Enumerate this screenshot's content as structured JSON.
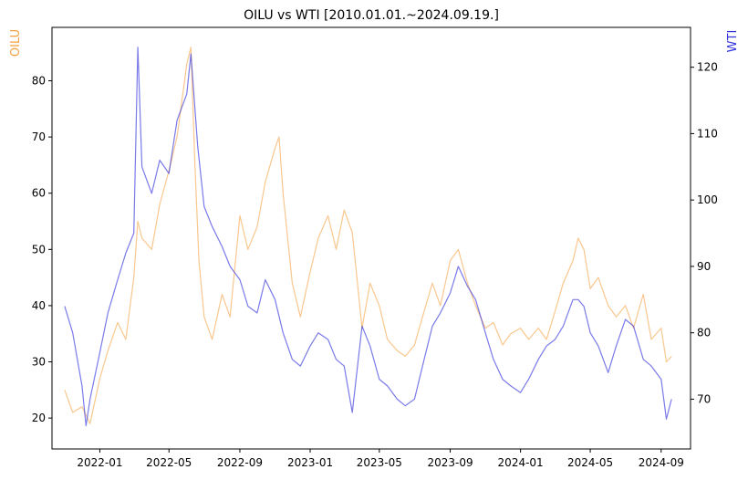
{
  "chart_data": {
    "type": "line",
    "title": "OILU vs WTI [2010.01.01.~2024.09.19.]",
    "ylabel_left": "OILU",
    "ylabel_right": "WTI",
    "x_ticks": [
      "2022-01",
      "2022-05",
      "2022-09",
      "2023-01",
      "2023-05",
      "2023-09",
      "2024-01",
      "2024-05",
      "2024-09"
    ],
    "y_left_ticks": [
      20,
      30,
      40,
      50,
      60,
      70,
      80
    ],
    "y_right_ticks": [
      70,
      80,
      90,
      100,
      110,
      120
    ],
    "ylim_left": [
      14.5,
      89.5
    ],
    "ylim_right": [
      62.5,
      126
    ],
    "xlim": [
      "2021-10-10",
      "2024-10-22"
    ],
    "grid": false,
    "series": [
      {
        "name": "OILU",
        "axis": "left",
        "color": "#f5a142",
        "x": [
          "2021-11-01",
          "2021-11-15",
          "2021-12-01",
          "2021-12-15",
          "2022-01-01",
          "2022-01-15",
          "2022-02-01",
          "2022-02-15",
          "2022-03-01",
          "2022-03-08",
          "2022-03-15",
          "2022-04-01",
          "2022-04-15",
          "2022-05-01",
          "2022-05-15",
          "2022-06-01",
          "2022-06-08",
          "2022-06-15",
          "2022-06-22",
          "2022-07-01",
          "2022-07-15",
          "2022-08-01",
          "2022-08-15",
          "2022-09-01",
          "2022-09-15",
          "2022-10-01",
          "2022-10-15",
          "2022-11-01",
          "2022-11-08",
          "2022-11-15",
          "2022-12-01",
          "2022-12-15",
          "2023-01-01",
          "2023-01-15",
          "2023-02-01",
          "2023-02-15",
          "2023-03-01",
          "2023-03-15",
          "2023-04-01",
          "2023-04-15",
          "2023-05-01",
          "2023-05-15",
          "2023-06-01",
          "2023-06-15",
          "2023-07-01",
          "2023-07-15",
          "2023-08-01",
          "2023-08-15",
          "2023-09-01",
          "2023-09-15",
          "2023-10-01",
          "2023-10-15",
          "2023-11-01",
          "2023-11-15",
          "2023-12-01",
          "2023-12-15",
          "2024-01-01",
          "2024-01-15",
          "2024-02-01",
          "2024-02-15",
          "2024-03-01",
          "2024-03-15",
          "2024-04-01",
          "2024-04-10",
          "2024-04-20",
          "2024-05-01",
          "2024-05-15",
          "2024-06-01",
          "2024-06-15",
          "2024-07-01",
          "2024-07-15",
          "2024-08-01",
          "2024-08-15",
          "2024-09-01",
          "2024-09-10",
          "2024-09-19"
        ],
        "values": [
          25,
          21,
          22,
          19,
          27,
          32,
          37,
          34,
          45,
          55,
          52,
          50,
          58,
          64,
          70,
          83,
          86,
          65,
          48,
          38,
          34,
          42,
          38,
          56,
          50,
          54,
          62,
          68,
          70,
          60,
          44,
          38,
          46,
          52,
          56,
          50,
          57,
          53,
          36,
          44,
          40,
          34,
          32,
          31,
          33,
          38,
          44,
          40,
          48,
          50,
          44,
          40,
          36,
          37,
          33,
          35,
          36,
          34,
          36,
          34,
          39,
          44,
          48,
          52,
          50,
          43,
          45,
          40,
          38,
          40,
          36,
          42,
          34,
          36,
          30,
          31
        ]
      },
      {
        "name": "WTI",
        "axis": "right",
        "color": "#3333dd",
        "x": [
          "2021-11-01",
          "2021-11-15",
          "2021-12-01",
          "2021-12-08",
          "2021-12-15",
          "2022-01-01",
          "2022-01-15",
          "2022-02-01",
          "2022-02-15",
          "2022-03-01",
          "2022-03-08",
          "2022-03-15",
          "2022-04-01",
          "2022-04-15",
          "2022-05-01",
          "2022-05-15",
          "2022-06-01",
          "2022-06-08",
          "2022-06-20",
          "2022-07-01",
          "2022-07-15",
          "2022-08-01",
          "2022-08-15",
          "2022-09-01",
          "2022-09-15",
          "2022-10-01",
          "2022-10-15",
          "2022-11-01",
          "2022-11-15",
          "2022-12-01",
          "2022-12-15",
          "2023-01-01",
          "2023-01-15",
          "2023-02-01",
          "2023-02-15",
          "2023-03-01",
          "2023-03-15",
          "2023-04-01",
          "2023-04-15",
          "2023-05-01",
          "2023-05-15",
          "2023-06-01",
          "2023-06-15",
          "2023-07-01",
          "2023-07-15",
          "2023-08-01",
          "2023-08-15",
          "2023-09-01",
          "2023-09-15",
          "2023-10-01",
          "2023-10-15",
          "2023-11-01",
          "2023-11-15",
          "2023-12-01",
          "2023-12-15",
          "2024-01-01",
          "2024-01-15",
          "2024-02-01",
          "2024-02-15",
          "2024-03-01",
          "2024-03-15",
          "2024-04-01",
          "2024-04-10",
          "2024-04-20",
          "2024-05-01",
          "2024-05-15",
          "2024-06-01",
          "2024-06-15",
          "2024-07-01",
          "2024-07-15",
          "2024-08-01",
          "2024-08-15",
          "2024-09-01",
          "2024-09-10",
          "2024-09-19"
        ],
        "values": [
          84,
          80,
          72,
          66,
          70,
          77,
          83,
          88,
          92,
          95,
          123,
          105,
          101,
          106,
          104,
          112,
          116,
          122,
          108,
          99,
          96,
          93,
          90,
          88,
          84,
          83,
          88,
          85,
          80,
          76,
          75,
          78,
          80,
          79,
          76,
          75,
          68,
          81,
          78,
          73,
          72,
          70,
          69,
          70,
          75,
          81,
          83,
          86,
          90,
          87,
          85,
          80,
          76,
          73,
          72,
          71,
          73,
          76,
          78,
          79,
          81,
          85,
          85,
          84,
          80,
          78,
          74,
          78,
          82,
          81,
          76,
          75,
          73,
          67,
          70
        ]
      }
    ]
  }
}
